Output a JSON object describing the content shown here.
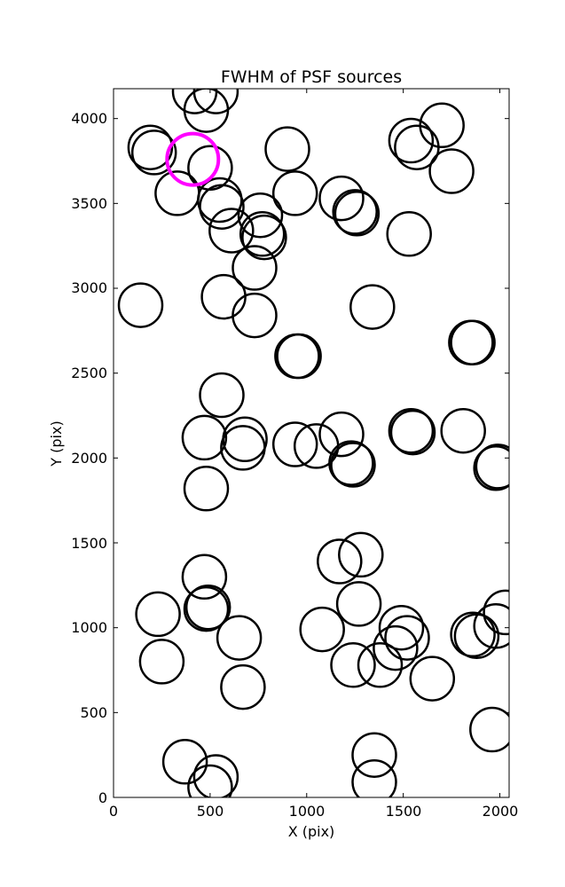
{
  "chart_data": {
    "type": "scatter",
    "title": "FWHM of PSF sources",
    "xlabel": "X (pix)",
    "ylabel": "Y (pix)",
    "xlim": [
      0,
      2048
    ],
    "ylim": [
      0,
      4176
    ],
    "xticks": [
      "0",
      "500",
      "1000",
      "1500",
      "2000"
    ],
    "yticks": [
      "0",
      "500",
      "1000",
      "1500",
      "2000",
      "2500",
      "3000",
      "3500",
      "4000"
    ],
    "grid": false,
    "marker": "open circle",
    "colors": {
      "default": "#000000",
      "highlight": "#ff00ff"
    },
    "highlight": {
      "x": 410,
      "y": 3760
    },
    "points": [
      [
        420,
        4160
      ],
      [
        530,
        4160
      ],
      [
        480,
        4050
      ],
      [
        190,
        3830
      ],
      [
        210,
        3800
      ],
      [
        330,
        3560
      ],
      [
        500,
        3710
      ],
      [
        550,
        3520
      ],
      [
        560,
        3480
      ],
      [
        610,
        3340
      ],
      [
        760,
        3430
      ],
      [
        770,
        3320
      ],
      [
        780,
        3300
      ],
      [
        730,
        3120
      ],
      [
        900,
        3820
      ],
      [
        940,
        3560
      ],
      [
        1180,
        3530
      ],
      [
        1250,
        3450
      ],
      [
        1260,
        3440
      ],
      [
        1540,
        3870
      ],
      [
        1570,
        3830
      ],
      [
        1700,
        3960
      ],
      [
        1750,
        3690
      ],
      [
        1530,
        3320
      ],
      [
        140,
        2900
      ],
      [
        570,
        2950
      ],
      [
        730,
        2840
      ],
      [
        960,
        2600
      ],
      [
        950,
        2600
      ],
      [
        1340,
        2890
      ],
      [
        1850,
        2680
      ],
      [
        1860,
        2680
      ],
      [
        560,
        2370
      ],
      [
        470,
        2120
      ],
      [
        680,
        2110
      ],
      [
        670,
        2060
      ],
      [
        480,
        1820
      ],
      [
        940,
        2080
      ],
      [
        1050,
        2070
      ],
      [
        1180,
        2140
      ],
      [
        1230,
        1970
      ],
      [
        1240,
        1960
      ],
      [
        1540,
        2160
      ],
      [
        1550,
        2150
      ],
      [
        1810,
        2160
      ],
      [
        1980,
        1940
      ],
      [
        1990,
        1950
      ],
      [
        470,
        1300
      ],
      [
        480,
        1110
      ],
      [
        490,
        1120
      ],
      [
        230,
        1080
      ],
      [
        250,
        800
      ],
      [
        650,
        940
      ],
      [
        670,
        650
      ],
      [
        1080,
        990
      ],
      [
        1170,
        1390
      ],
      [
        1280,
        1430
      ],
      [
        1270,
        1140
      ],
      [
        1240,
        780
      ],
      [
        1380,
        780
      ],
      [
        1460,
        880
      ],
      [
        1490,
        1000
      ],
      [
        1520,
        940
      ],
      [
        1650,
        700
      ],
      [
        1860,
        960
      ],
      [
        1880,
        950
      ],
      [
        1980,
        1010
      ],
      [
        2030,
        1090
      ],
      [
        1960,
        400
      ],
      [
        370,
        210
      ],
      [
        530,
        120
      ],
      [
        500,
        60
      ],
      [
        1350,
        250
      ],
      [
        1350,
        90
      ]
    ]
  }
}
